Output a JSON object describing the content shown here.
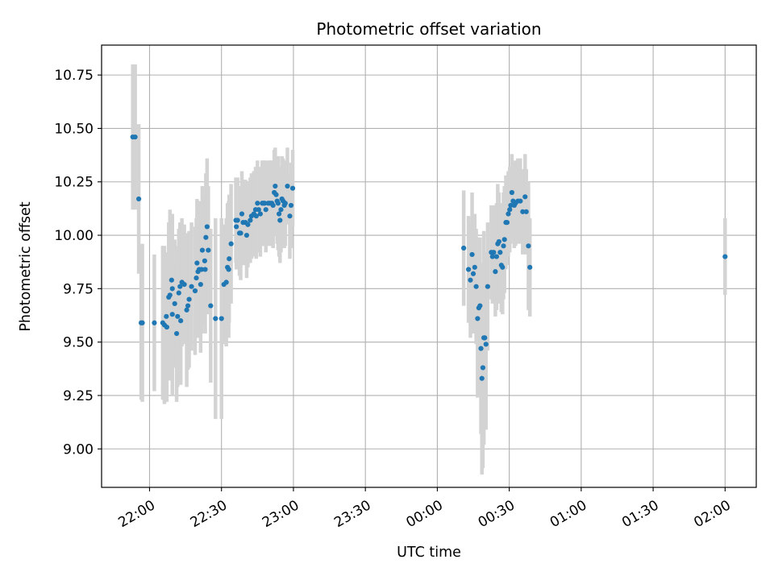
{
  "chart_data": {
    "type": "scatter",
    "title": "Photometric offset variation",
    "xlabel": "UTC time",
    "ylabel": "Photometric offset",
    "x_unit": "minutes after 00:00 UTC (negative = before midnight)",
    "xlim": [
      -140,
      133
    ],
    "ylim": [
      8.82,
      10.89
    ],
    "x_ticks": [
      {
        "value": -120,
        "label": "22:00"
      },
      {
        "value": -90,
        "label": "22:30"
      },
      {
        "value": -60,
        "label": "23:00"
      },
      {
        "value": -30,
        "label": "23:30"
      },
      {
        "value": 0,
        "label": "00:00"
      },
      {
        "value": 30,
        "label": "00:30"
      },
      {
        "value": 60,
        "label": "01:00"
      },
      {
        "value": 90,
        "label": "01:30"
      },
      {
        "value": 120,
        "label": "02:00"
      }
    ],
    "y_ticks": [
      {
        "value": 9.0,
        "label": "9.00"
      },
      {
        "value": 9.25,
        "label": "9.25"
      },
      {
        "value": 9.5,
        "label": "9.50"
      },
      {
        "value": 9.75,
        "label": "9.75"
      },
      {
        "value": 10.0,
        "label": "10.00"
      },
      {
        "value": 10.25,
        "label": "10.25"
      },
      {
        "value": 10.5,
        "label": "10.50"
      },
      {
        "value": 10.75,
        "label": "10.75"
      }
    ],
    "grid": true,
    "colors": {
      "points": "#1f77b4",
      "error_bars": "#d3d3d3"
    },
    "series": [
      {
        "points": [
          [
            -127,
            10.46,
            0.34
          ],
          [
            -126,
            10.46,
            0.34
          ],
          [
            -124.5,
            10.17,
            0.35
          ],
          [
            -123.5,
            9.59,
            0.36
          ],
          [
            -123,
            9.59,
            0.37
          ],
          [
            -118,
            9.59,
            0.32
          ],
          [
            -114.5,
            9.59,
            0.36
          ],
          [
            -113.8,
            9.58,
            0.37
          ],
          [
            -113,
            9.62,
            0.3
          ],
          [
            -112.8,
            9.57,
            0.35
          ],
          [
            -112,
            9.71,
            0.35
          ],
          [
            -111.5,
            9.72,
            0.4
          ],
          [
            -110.5,
            9.75,
            0.35
          ],
          [
            -110.8,
            9.79,
            0.3
          ],
          [
            -110.5,
            9.63,
            0.38
          ],
          [
            -109.5,
            9.68,
            0.3
          ],
          [
            -108.7,
            9.54,
            0.32
          ],
          [
            -108.3,
            9.62,
            0.33
          ],
          [
            -107.8,
            9.73,
            0.3
          ],
          [
            -107.3,
            9.76,
            0.3
          ],
          [
            -107,
            9.6,
            0.3
          ],
          [
            -106.5,
            9.78,
            0.3
          ],
          [
            -105.5,
            9.77,
            0.28
          ],
          [
            -104.5,
            9.65,
            0.36
          ],
          [
            -104,
            9.67,
            0.3
          ],
          [
            -103.5,
            9.7,
            0.32
          ],
          [
            -102.5,
            9.76,
            0.3
          ],
          [
            -101,
            9.74,
            0.3
          ],
          [
            -100.5,
            9.8,
            0.28
          ],
          [
            -100.2,
            9.87,
            0.3
          ],
          [
            -99.8,
            9.83,
            0.3
          ],
          [
            -99.3,
            9.84,
            0.32
          ],
          [
            -98.7,
            9.77,
            0.32
          ],
          [
            -98.3,
            9.84,
            0.3
          ],
          [
            -98,
            9.93,
            0.3
          ],
          [
            -97,
            9.88,
            0.3
          ],
          [
            -96.8,
            9.84,
            0.3
          ],
          [
            -96.5,
            9.99,
            0.3
          ],
          [
            -96,
            10.04,
            0.32
          ],
          [
            -95.5,
            9.93,
            0.3
          ],
          [
            -94.5,
            9.67,
            0.36
          ],
          [
            -92.5,
            9.61,
            0.47
          ],
          [
            -90,
            9.61,
            0.47
          ],
          [
            -89,
            9.77,
            0.28
          ],
          [
            -88,
            9.78,
            0.3
          ],
          [
            -87.5,
            9.85,
            0.3
          ],
          [
            -87,
            9.84,
            0.32
          ],
          [
            -86.8,
            9.89,
            0.3
          ],
          [
            -86,
            9.96,
            0.28
          ],
          [
            -84,
            10.07,
            0.2
          ],
          [
            -83.8,
            10.04,
            0.2
          ],
          [
            -83.3,
            10.07,
            0.2
          ],
          [
            -82.5,
            10.01,
            0.2
          ],
          [
            -82,
            10.01,
            0.22
          ],
          [
            -81.5,
            10.1,
            0.2
          ],
          [
            -81,
            10.06,
            0.2
          ],
          [
            -80,
            10.06,
            0.2
          ],
          [
            -79.5,
            10.0,
            0.2
          ],
          [
            -79,
            10.05,
            0.2
          ],
          [
            -78,
            10.07,
            0.2
          ],
          [
            -77.5,
            10.09,
            0.2
          ],
          [
            -76.5,
            10.1,
            0.2
          ],
          [
            -75.8,
            10.12,
            0.2
          ],
          [
            -75.5,
            10.09,
            0.2
          ],
          [
            -75,
            10.15,
            0.2
          ],
          [
            -74.5,
            10.12,
            0.2
          ],
          [
            -73.8,
            10.1,
            0.2
          ],
          [
            -73,
            10.15,
            0.2
          ],
          [
            -72.5,
            10.15,
            0.2
          ],
          [
            -72,
            10.15,
            0.2
          ],
          [
            -71.5,
            10.12,
            0.2
          ],
          [
            -70.5,
            10.15,
            0.2
          ],
          [
            -69.8,
            10.15,
            0.2
          ],
          [
            -69,
            10.15,
            0.2
          ],
          [
            -68.5,
            10.14,
            0.2
          ],
          [
            -68,
            10.2,
            0.2
          ],
          [
            -67.6,
            10.23,
            0.18
          ],
          [
            -67.2,
            10.19,
            0.18
          ],
          [
            -66.8,
            10.16,
            0.2
          ],
          [
            -66.4,
            10.15,
            0.22
          ],
          [
            -66,
            10.1,
            0.2
          ],
          [
            -65.6,
            10.07,
            0.2
          ],
          [
            -65.2,
            10.12,
            0.2
          ],
          [
            -64.8,
            10.17,
            0.2
          ],
          [
            -64.3,
            10.16,
            0.2
          ],
          [
            -63.8,
            10.14,
            0.2
          ],
          [
            -63.4,
            10.15,
            0.2
          ],
          [
            -62.5,
            10.23,
            0.18
          ],
          [
            -61.5,
            10.09,
            0.2
          ],
          [
            -61,
            10.14,
            0.2
          ],
          [
            -60.3,
            10.22,
            0.18
          ],
          [
            11,
            9.94,
            0.27
          ],
          [
            13,
            9.84,
            0.25
          ],
          [
            13.8,
            9.79,
            0.27
          ],
          [
            14.5,
            9.91,
            0.29
          ],
          [
            15,
            9.82,
            0.28
          ],
          [
            15.6,
            9.85,
            0.25
          ],
          [
            16.2,
            9.76,
            0.27
          ],
          [
            16.8,
            9.61,
            0.37
          ],
          [
            17.3,
            9.66,
            0.33
          ],
          [
            17.8,
            9.67,
            0.32
          ],
          [
            18.2,
            9.47,
            0.4
          ],
          [
            18.6,
            9.33,
            0.45
          ],
          [
            19,
            9.38,
            0.47
          ],
          [
            19.4,
            9.52,
            0.5
          ],
          [
            19.8,
            9.52,
            0.4
          ],
          [
            20.3,
            9.49,
            0.4
          ],
          [
            21,
            9.76,
            0.3
          ],
          [
            22.5,
            9.92,
            0.22
          ],
          [
            23,
            9.9,
            0.22
          ],
          [
            23.5,
            9.92,
            0.22
          ],
          [
            24.2,
            9.83,
            0.21
          ],
          [
            24.7,
            9.9,
            0.25
          ],
          [
            25.2,
            9.96,
            0.28
          ],
          [
            25.7,
            9.97,
            0.23
          ],
          [
            26.2,
            9.92,
            0.23
          ],
          [
            26.7,
            9.86,
            0.22
          ],
          [
            27.2,
            9.85,
            0.22
          ],
          [
            27.6,
            9.95,
            0.25
          ],
          [
            28,
            9.98,
            0.25
          ],
          [
            28.6,
            10.06,
            0.22
          ],
          [
            29.1,
            10.06,
            0.2
          ],
          [
            29.6,
            10.1,
            0.2
          ],
          [
            30.2,
            10.12,
            0.2
          ],
          [
            30.6,
            10.14,
            0.18
          ],
          [
            31.1,
            10.2,
            0.18
          ],
          [
            31.6,
            10.16,
            0.18
          ],
          [
            32.1,
            10.14,
            0.2
          ],
          [
            32.6,
            10.15,
            0.2
          ],
          [
            33.6,
            10.16,
            0.2
          ],
          [
            34.6,
            10.16,
            0.2
          ],
          [
            35.6,
            10.11,
            0.2
          ],
          [
            36.6,
            10.18,
            0.2
          ],
          [
            37.1,
            10.11,
            0.2
          ],
          [
            38,
            9.95,
            0.3
          ],
          [
            38.6,
            9.85,
            0.23
          ],
          [
            120,
            9.9,
            0.18
          ]
        ]
      }
    ]
  }
}
